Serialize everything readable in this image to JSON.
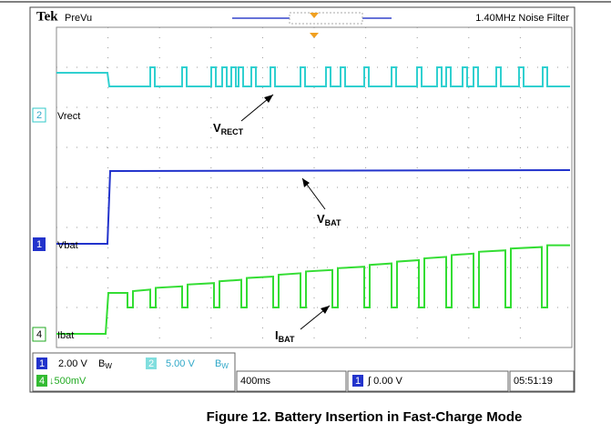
{
  "header": {
    "brand": "Tek",
    "mode": "PreVu",
    "filter": "1.40MHz  Noise Filter"
  },
  "channels": [
    {
      "number": "2",
      "label": "Vrect"
    },
    {
      "number": "1",
      "label": "Vbat"
    },
    {
      "number": "4",
      "label": "Ibat"
    }
  ],
  "annotations": [
    {
      "main": "V",
      "sub": "RECT"
    },
    {
      "main": "V",
      "sub": "BAT"
    },
    {
      "main": "I",
      "sub": "BAT"
    }
  ],
  "status": {
    "ch1_number": "1",
    "ch1_scale": "2.00 V",
    "ch1_bw": "B",
    "ch1_bw_sub": "W",
    "ch2_number": "2",
    "ch2_scale": "5.00 V",
    "ch2_bw": "B",
    "ch2_bw_sub": "W",
    "ch4_number": "4",
    "ch4_scale": "↓500mV",
    "timebase": "400ms",
    "trigger_channel": "1",
    "trigger_level": "∫ 0.00 V",
    "time": "05:51:19"
  },
  "caption": "Figure 12. Battery Insertion in Fast-Charge Mode"
}
